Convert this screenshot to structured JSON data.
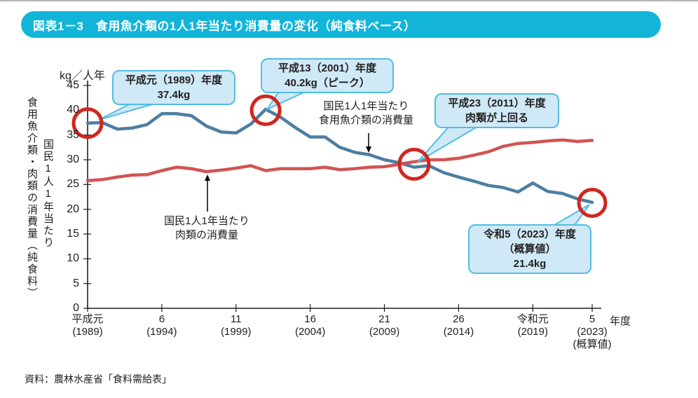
{
  "header": {
    "title": "図表1－3　食用魚介類の1人1年当たり消費量の変化（純食料ベース）"
  },
  "colors": {
    "title_bar": "#12b5d9",
    "fish_line": "#4d7ea3",
    "meat_line": "#d15454",
    "highlight_circle": "#cf2721",
    "callout_fill": "#cfe9f6",
    "callout_border": "#53bce3",
    "axis": "#231f20"
  },
  "chart_data": {
    "type": "line",
    "title": "食用魚介類の1人1年当たり消費量の変化（純食料ベース）",
    "y_unit": "kg／人年",
    "x_unit": "年度",
    "y_axis_title_main": "食用魚介類・肉類の消費量（純食料）",
    "y_axis_title_sub": "国民1人1年当たり",
    "ylim": [
      0,
      45
    ],
    "y_ticks": [
      0,
      5,
      10,
      15,
      20,
      25,
      30,
      35,
      40,
      45
    ],
    "grid": "off",
    "legend_position": "inline-annotations",
    "x_years": [
      1989,
      1990,
      1991,
      1992,
      1993,
      1994,
      1995,
      1996,
      1997,
      1998,
      1999,
      2000,
      2001,
      2002,
      2003,
      2004,
      2005,
      2006,
      2007,
      2008,
      2009,
      2010,
      2011,
      2012,
      2013,
      2014,
      2015,
      2016,
      2017,
      2018,
      2019,
      2020,
      2021,
      2022,
      2023
    ],
    "x_tick_labels": [
      {
        "year": 1989,
        "lines": [
          "平成元",
          "(1989)"
        ]
      },
      {
        "year": 1994,
        "lines": [
          "6",
          "(1994)"
        ]
      },
      {
        "year": 1999,
        "lines": [
          "11",
          "(1999)"
        ]
      },
      {
        "year": 2004,
        "lines": [
          "16",
          "(2004)"
        ]
      },
      {
        "year": 2009,
        "lines": [
          "21",
          "(2009)"
        ]
      },
      {
        "year": 2014,
        "lines": [
          "26",
          "(2014)"
        ]
      },
      {
        "year": 2019,
        "lines": [
          "令和元",
          "(2019)"
        ]
      },
      {
        "year": 2023,
        "lines": [
          "5",
          "(2023)",
          "(概算値)"
        ]
      }
    ],
    "series": [
      {
        "name": "国民1人1年当たり食用魚介類の消費量",
        "color": "#4d7ea3",
        "values": [
          37.4,
          37.5,
          36.2,
          36.4,
          37.1,
          39.3,
          39.3,
          38.9,
          36.8,
          35.6,
          35.4,
          37.2,
          40.2,
          38.6,
          36.5,
          34.6,
          34.6,
          32.5,
          31.5,
          31.0,
          30.0,
          29.4,
          28.5,
          28.8,
          27.4,
          26.5,
          25.7,
          24.8,
          24.4,
          23.5,
          25.3,
          23.6,
          23.2,
          22.1,
          21.4
        ]
      },
      {
        "name": "国民1人1年当たり肉類の消費量",
        "color": "#d15454",
        "values": [
          25.8,
          26.0,
          26.5,
          26.9,
          27.0,
          27.8,
          28.5,
          28.2,
          27.6,
          27.9,
          28.3,
          28.8,
          27.8,
          28.2,
          28.2,
          28.2,
          28.5,
          28.0,
          28.2,
          28.5,
          28.6,
          29.1,
          29.6,
          30.0,
          30.0,
          30.3,
          30.9,
          31.6,
          32.7,
          33.3,
          33.5,
          33.8,
          34.0,
          33.7,
          33.9
        ]
      }
    ],
    "highlights": [
      {
        "year": 1989,
        "value": 37.4,
        "note": "平成元（1989）年度 37.4kg"
      },
      {
        "year": 2001,
        "value": 40.0,
        "note": "平成13（2001）年度 40.2kg（ピーク）"
      },
      {
        "year": 2011,
        "value": 29.1,
        "note": "平成23（2011）年度 肉類が上回る"
      },
      {
        "year": 2023,
        "value": 21.3,
        "note": "令和5（2023）年度（概算値）21.4kg"
      }
    ]
  },
  "annotations": {
    "fish": {
      "lines": [
        "国民1人1年当たり",
        "食用魚介類の消費量"
      ]
    },
    "meat": {
      "lines": [
        "国民1人1年当たり",
        "肉類の消費量"
      ]
    }
  },
  "callouts": {
    "y1989": {
      "lines": [
        "平成元（1989）年度",
        "37.4kg"
      ]
    },
    "y2001": {
      "lines": [
        "平成13（2001）年度",
        "40.2kg（ピーク）"
      ]
    },
    "y2011": {
      "lines": [
        "平成23（2011）年度",
        "肉類が上回る"
      ]
    },
    "y2023": {
      "lines": [
        "令和5（2023）年度",
        "（概算値）",
        "21.4kg"
      ]
    }
  },
  "footer": {
    "source": "資料：農林水産省「食料需給表」"
  }
}
